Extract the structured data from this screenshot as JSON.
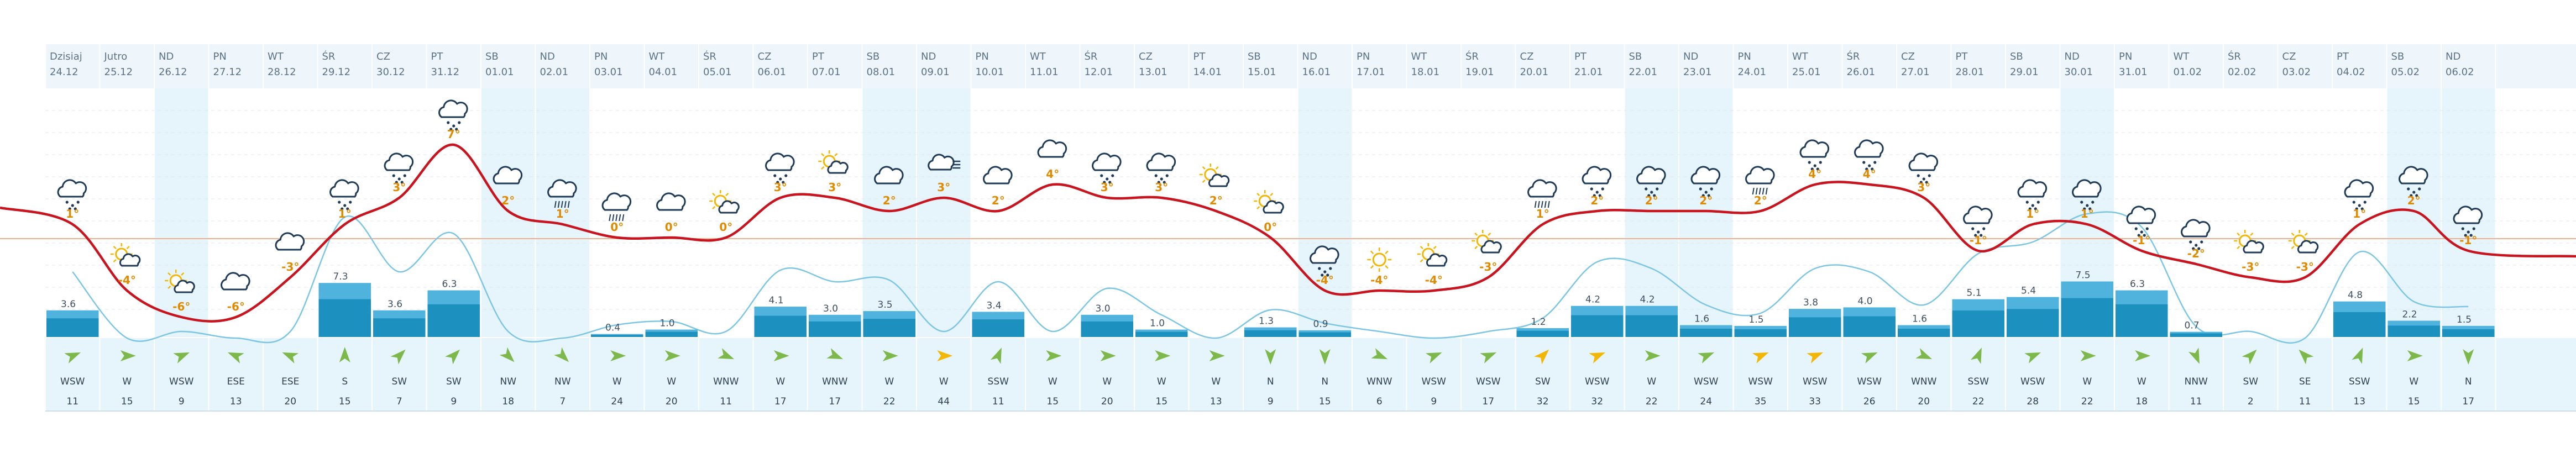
{
  "colors": {
    "weekend_bg": "#e6f4fb",
    "header_bg": "#eef6fb",
    "wind_bg": "#e6f4fb",
    "temp_line": "#c8141e",
    "rain_line": "#7cc6e4",
    "bar_light": "#4fb3de",
    "bar_dark": "#0b84b4",
    "ref_line": "#f0b090",
    "arrow_green": "#7db84b",
    "arrow_yellow": "#f2b705",
    "grid": "#dfe7ee"
  },
  "chart_data": {
    "type": "line",
    "title": "",
    "categories": [
      "24.12",
      "25.12",
      "26.12",
      "27.12",
      "28.12",
      "29.12",
      "30.12",
      "31.12",
      "01.01",
      "02.01",
      "03.01",
      "04.01",
      "05.01",
      "06.01",
      "07.01",
      "08.01",
      "09.01",
      "10.01",
      "11.01",
      "12.01",
      "13.01",
      "14.01",
      "15.01",
      "16.01",
      "17.01",
      "18.01",
      "19.01",
      "20.01",
      "21.01",
      "22.01",
      "23.01",
      "24.01",
      "25.01",
      "26.01",
      "27.01",
      "28.01",
      "29.01",
      "30.01",
      "31.01",
      "01.02",
      "02.02",
      "03.02",
      "04.02",
      "05.02",
      "06.02"
    ],
    "days": [
      "Dzisiaj",
      "Jutro",
      "ND",
      "PN",
      "WT",
      "ŚR",
      "CZ",
      "PT",
      "SB",
      "ND",
      "PN",
      "WT",
      "ŚR",
      "CZ",
      "PT",
      "SB",
      "ND",
      "PN",
      "WT",
      "ŚR",
      "CZ",
      "PT",
      "SB",
      "ND",
      "PN",
      "WT",
      "ŚR",
      "CZ",
      "PT",
      "SB",
      "ND",
      "PN",
      "WT",
      "ŚR",
      "CZ",
      "PT",
      "SB",
      "ND",
      "PN",
      "WT",
      "ŚR",
      "CZ",
      "PT",
      "SB",
      "ND"
    ],
    "weekend": [
      false,
      false,
      true,
      false,
      false,
      false,
      false,
      false,
      true,
      true,
      false,
      false,
      false,
      false,
      false,
      true,
      true,
      false,
      false,
      false,
      false,
      false,
      false,
      true,
      false,
      false,
      false,
      false,
      false,
      true,
      true,
      false,
      false,
      false,
      false,
      false,
      false,
      true,
      false,
      false,
      false,
      false,
      false,
      true,
      true
    ],
    "temperature_labels": [
      "1°",
      "-4°",
      "-6°",
      "-6°",
      "-3°",
      "1°",
      "3°",
      "7°",
      "2°",
      "1°",
      "0°",
      "0°",
      "0°",
      "3°",
      "3°",
      "2°",
      "3°",
      "2°",
      "4°",
      "3°",
      "3°",
      "2°",
      "0°",
      "-4°",
      "-4°",
      "-4°",
      "-3°",
      "1°",
      "2°",
      "2°",
      "2°",
      "2°",
      "4°",
      "4°",
      "3°",
      "-1°",
      "1°",
      "1°",
      "-1°",
      "-2°",
      "-3°",
      "-3°",
      "1°",
      "2°",
      "-1°"
    ],
    "series": [
      {
        "name": "",
        "kind": "temperature",
        "values": [
          1,
          -4,
          -6,
          -6,
          -3,
          1,
          3,
          7,
          2,
          1,
          0,
          0,
          0,
          3,
          3,
          2,
          3,
          2,
          4,
          3,
          3,
          2,
          0,
          -4,
          -4,
          -4,
          -3,
          1,
          2,
          2,
          2,
          2,
          4,
          4,
          3,
          -1,
          1,
          1,
          -1,
          -2,
          -3,
          -3,
          1,
          2,
          -1
        ]
      },
      {
        "name": "",
        "kind": "precipitation",
        "values": [
          3.6,
          null,
          null,
          null,
          null,
          7.3,
          3.6,
          6.3,
          null,
          null,
          0.4,
          1.0,
          null,
          4.1,
          3.0,
          3.5,
          null,
          3.4,
          null,
          3.0,
          1.0,
          null,
          1.3,
          0.9,
          null,
          null,
          null,
          1.2,
          4.2,
          4.2,
          1.6,
          1.5,
          3.8,
          4.0,
          1.6,
          5.1,
          5.4,
          7.5,
          6.3,
          0.7,
          null,
          null,
          4.8,
          2.2,
          1.5
        ]
      }
    ],
    "precip_labels": [
      "3.6",
      "",
      "",
      "",
      "",
      "7.3",
      "3.6",
      "6.3",
      "",
      "",
      "0.4",
      "1.0",
      "",
      "4.1",
      "3.0",
      "3.5",
      "",
      "3.4",
      "",
      "3.0",
      "1.0",
      "",
      "1.3",
      "0.9",
      "",
      "",
      "",
      "1.2",
      "4.2",
      "4.2",
      "1.6",
      "1.5",
      "3.8",
      "4.0",
      "1.6",
      "5.1",
      "5.4",
      "7.5",
      "6.3",
      "0.7",
      "",
      "",
      "4.8",
      "2.2",
      "1.5"
    ],
    "icons": [
      "snow-cloud-icon",
      "sun-cloud-icon",
      "sun-cloud-icon",
      "cloud-icon",
      "cloud-icon",
      "snow-cloud-icon",
      "snow-cloud-icon",
      "snow-cloud-icon",
      "cloud-icon",
      "rain-cloud-icon",
      "rain-cloud-icon",
      "cloud-icon",
      "sun-cloud-icon",
      "snow-cloud-icon",
      "sun-cloud-icon",
      "cloud-icon",
      "fog-cloud-icon",
      "cloud-icon",
      "cloud-icon",
      "snow-cloud-icon",
      "snow-cloud-icon",
      "sun-cloud-icon",
      "sun-cloud-icon",
      "snow-cloud-icon",
      "sun-icon",
      "sun-cloud-icon",
      "sun-cloud-icon",
      "rain-cloud-icon",
      "snow-cloud-icon",
      "snow-cloud-icon",
      "snow-cloud-icon",
      "rain-cloud-icon",
      "snow-cloud-icon",
      "snow-cloud-icon",
      "snow-cloud-icon",
      "snow-cloud-icon",
      "snow-cloud-icon",
      "snow-cloud-icon",
      "snow-cloud-icon",
      "snow-cloud-icon",
      "sun-cloud-icon",
      "sun-cloud-icon",
      "snow-cloud-icon",
      "snow-cloud-icon",
      "snow-cloud-icon"
    ],
    "wind_direction": [
      "WSW",
      "W",
      "WSW",
      "ESE",
      "ESE",
      "S",
      "SW",
      "SW",
      "NW",
      "NW",
      "W",
      "W",
      "WNW",
      "W",
      "WNW",
      "W",
      "W",
      "SSW",
      "W",
      "W",
      "W",
      "W",
      "N",
      "N",
      "WNW",
      "WSW",
      "WSW",
      "SW",
      "WSW",
      "W",
      "WSW",
      "WSW",
      "WSW",
      "WSW",
      "WNW",
      "SSW",
      "WSW",
      "W",
      "W",
      "NNW",
      "SW",
      "SE",
      "SSW",
      "W",
      "N"
    ],
    "wind_speed": [
      "11",
      "15",
      "9",
      "13",
      "20",
      "15",
      "7",
      "9",
      "18",
      "7",
      "24",
      "20",
      "11",
      "17",
      "17",
      "22",
      "44",
      "11",
      "15",
      "20",
      "15",
      "13",
      "9",
      "15",
      "6",
      "9",
      "17",
      "32",
      "32",
      "22",
      "24",
      "35",
      "33",
      "26",
      "20",
      "22",
      "28",
      "22",
      "18",
      "11",
      "2",
      "11",
      "13",
      "15",
      "17"
    ],
    "ylim_temperature": [
      -10,
      10
    ],
    "ylim_precipitation": [
      0,
      10
    ]
  }
}
